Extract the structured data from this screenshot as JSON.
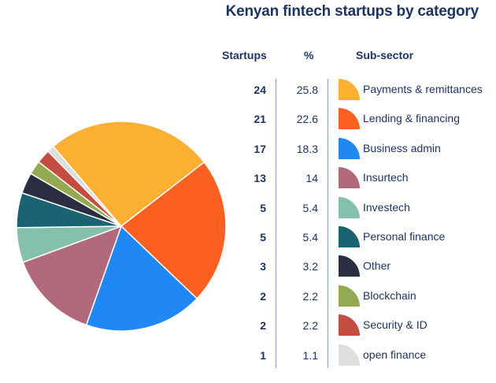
{
  "title": "Kenyan fintech startups by category",
  "columns": {
    "startups": "Startups",
    "percent": "%",
    "subsector": "Sub-sector"
  },
  "chart_data": {
    "type": "pie",
    "title": "Kenyan fintech startups by category",
    "legend": "right",
    "slices": [
      {
        "label": "Payments & remittances",
        "startups": "24",
        "percent": "25.8",
        "value": 24,
        "color": "#fbb034"
      },
      {
        "label": "Lending & financing",
        "startups": "21",
        "percent": "22.6",
        "value": 21,
        "color": "#fc6020"
      },
      {
        "label": "Business admin",
        "startups": "17",
        "percent": "18.3",
        "value": 17,
        "color": "#1f88f5"
      },
      {
        "label": "Insurtech",
        "startups": "13",
        "percent": "14",
        "value": 13,
        "color": "#b06a7c"
      },
      {
        "label": "Investech",
        "startups": "5",
        "percent": "5.4",
        "value": 5,
        "color": "#85bfae"
      },
      {
        "label": "Personal finance",
        "startups": "5",
        "percent": "5.4",
        "value": 5,
        "color": "#1a6372"
      },
      {
        "label": "Other",
        "startups": "3",
        "percent": "3.2",
        "value": 3,
        "color": "#2a2e40"
      },
      {
        "label": "Blockchain",
        "startups": "2",
        "percent": "2.2",
        "value": 2,
        "color": "#94aa52"
      },
      {
        "label": "Security & ID",
        "startups": "2",
        "percent": "2.2",
        "value": 2,
        "color": "#c44c40"
      },
      {
        "label": "open finance",
        "startups": "1",
        "percent": "1.1",
        "value": 1,
        "color": "#dedede"
      }
    ]
  }
}
